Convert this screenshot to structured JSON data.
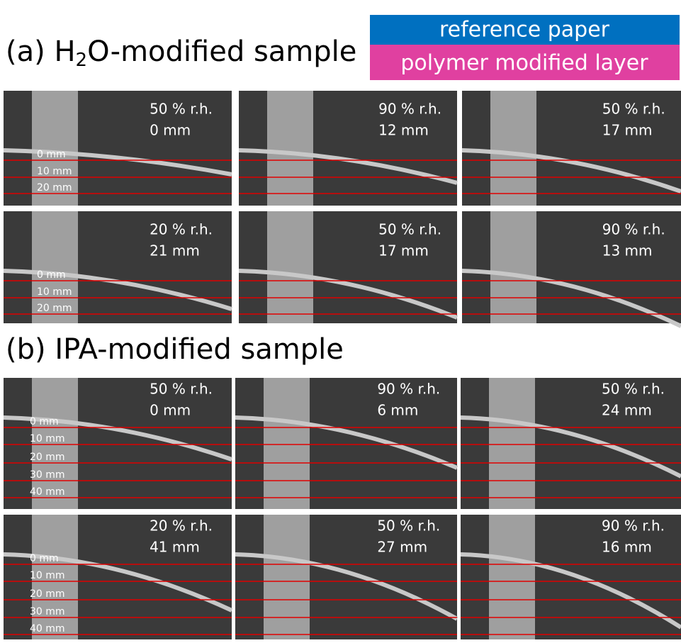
{
  "legend": {
    "reference": "reference paper",
    "polymer": "polymer modified layer"
  },
  "sections": [
    {
      "title_pre": "(a) H",
      "title_sub": "2",
      "title_post": "O-modified sample",
      "scale_labels": [
        "0 mm",
        "10 mm",
        "20 mm"
      ],
      "panels": [
        [
          {
            "rh": "50 % r.h.",
            "deflection": "0 mm"
          },
          {
            "rh": "90 % r.h.",
            "deflection": "12 mm"
          },
          {
            "rh": "50 % r.h.",
            "deflection": "17 mm"
          }
        ],
        [
          {
            "rh": "20 % r.h.",
            "deflection": "21 mm"
          },
          {
            "rh": "50 % r.h.",
            "deflection": "17 mm"
          },
          {
            "rh": "90 % r.h.",
            "deflection": "13 mm"
          }
        ]
      ]
    },
    {
      "title_pre": "(b) IPA-modified sample",
      "scale_labels": [
        "0 mm",
        "10 mm",
        "20 mm",
        "30 mm",
        "40 mm"
      ],
      "panels": [
        [
          {
            "rh": "50 % r.h.",
            "deflection": "0 mm"
          },
          {
            "rh": "90 % r.h.",
            "deflection": "6 mm"
          },
          {
            "rh": "50 % r.h.",
            "deflection": "24 mm"
          }
        ],
        [
          {
            "rh": "20 % r.h.",
            "deflection": "41 mm"
          },
          {
            "rh": "50 % r.h.",
            "deflection": "27 mm"
          },
          {
            "rh": "90 % r.h.",
            "deflection": "16 mm"
          }
        ]
      ]
    }
  ]
}
